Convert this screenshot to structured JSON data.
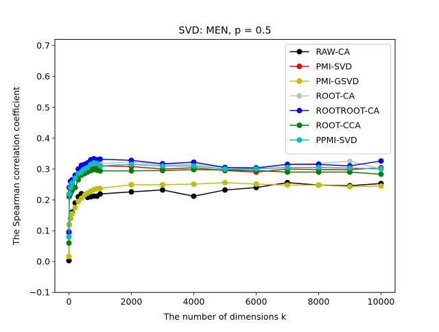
{
  "chart_data": {
    "type": "line",
    "title": "SVD: MEN, p = 0.5",
    "xlabel": "The number of dimensions k",
    "ylabel": "The Spearman correlation coefficient",
    "xlim": [
      -450,
      10450
    ],
    "ylim": [
      -0.1,
      0.72
    ],
    "xticks": [
      0,
      2000,
      4000,
      6000,
      8000,
      10000
    ],
    "xtick_labels": [
      "0",
      "2000",
      "4000",
      "6000",
      "8000",
      "10000"
    ],
    "yticks": [
      -0.1,
      0.0,
      0.1,
      0.2,
      0.3,
      0.4,
      0.5,
      0.6,
      0.7
    ],
    "ytick_labels": [
      "−0.1",
      "0.0",
      "0.1",
      "0.2",
      "0.3",
      "0.4",
      "0.5",
      "0.6",
      "0.7"
    ],
    "grid": false,
    "legend_position": "top-right",
    "x": [
      1,
      10,
      50,
      100,
      200,
      300,
      400,
      500,
      600,
      700,
      800,
      900,
      1000,
      2000,
      3000,
      4000,
      5000,
      6000,
      7000,
      8000,
      9000,
      10000
    ],
    "series": [
      {
        "name": "RAW-CA",
        "color": "#000000",
        "values": [
          0.003,
          0.12,
          0.14,
          0.16,
          0.19,
          0.21,
          0.22,
          0.215,
          0.208,
          0.21,
          0.212,
          0.212,
          0.219,
          0.226,
          0.232,
          0.212,
          0.232,
          0.24,
          0.256,
          0.248,
          0.246,
          0.253
        ]
      },
      {
        "name": "PMI-SVD",
        "color": "#ff0000",
        "values": [
          0.095,
          0.215,
          0.235,
          0.25,
          0.27,
          0.28,
          0.29,
          0.3,
          0.305,
          0.31,
          0.31,
          0.31,
          0.31,
          0.308,
          0.3,
          0.304,
          0.295,
          0.29,
          0.3,
          0.298,
          0.298,
          0.304
        ]
      },
      {
        "name": "PMI-GSVD",
        "color": "#bfbf00",
        "values": [
          0.016,
          0.12,
          0.14,
          0.155,
          0.175,
          0.195,
          0.205,
          0.215,
          0.222,
          0.228,
          0.233,
          0.236,
          0.237,
          0.249,
          0.249,
          0.251,
          0.256,
          0.251,
          0.248,
          0.248,
          0.243,
          0.245
        ]
      },
      {
        "name": "ROOT-CA",
        "color": "#bfbfbf",
        "values": [
          0.1,
          0.22,
          0.245,
          0.26,
          0.275,
          0.29,
          0.3,
          0.305,
          0.31,
          0.315,
          0.318,
          0.318,
          0.318,
          0.322,
          0.315,
          0.315,
          0.305,
          0.305,
          0.315,
          0.318,
          0.325,
          0.3
        ]
      },
      {
        "name": "ROOTROOT-CA",
        "color": "#0000ff",
        "values": [
          0.095,
          0.24,
          0.26,
          0.265,
          0.28,
          0.3,
          0.312,
          0.315,
          0.32,
          0.33,
          0.333,
          0.33,
          0.332,
          0.328,
          0.317,
          0.322,
          0.305,
          0.303,
          0.315,
          0.315,
          0.31,
          0.326
        ]
      },
      {
        "name": "ROOT-CCA",
        "color": "#008000",
        "values": [
          0.06,
          0.21,
          0.22,
          0.23,
          0.24,
          0.265,
          0.28,
          0.285,
          0.29,
          0.295,
          0.298,
          0.296,
          0.294,
          0.294,
          0.295,
          0.298,
          0.297,
          0.295,
          0.29,
          0.29,
          0.29,
          0.283
        ]
      },
      {
        "name": "PPMI-SVD",
        "color": "#00bfbf",
        "values": [
          0.08,
          0.22,
          0.24,
          0.255,
          0.27,
          0.285,
          0.29,
          0.3,
          0.305,
          0.315,
          0.32,
          0.318,
          0.31,
          0.315,
          0.31,
          0.31,
          0.3,
          0.3,
          0.305,
          0.305,
          0.303,
          0.3
        ]
      }
    ]
  }
}
